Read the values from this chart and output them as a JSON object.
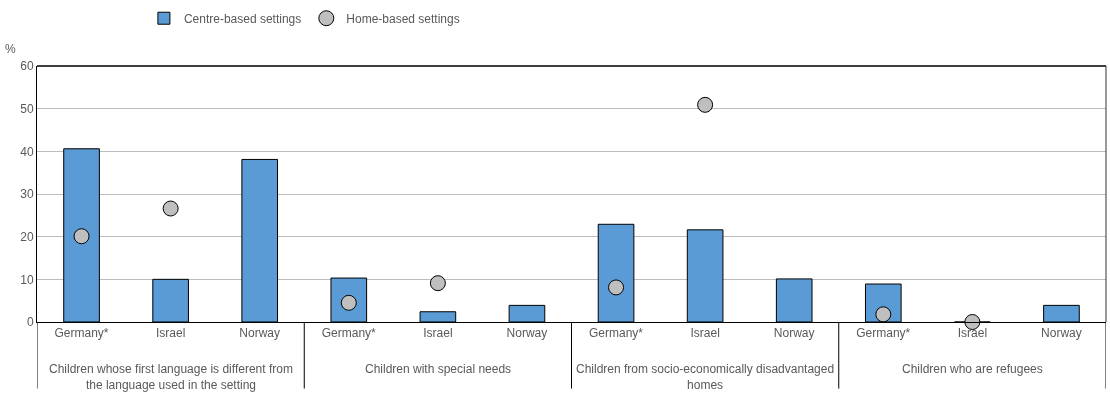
{
  "chart_data": {
    "type": "bar",
    "ylabel": "%",
    "categories": [
      "Germany*",
      "Israel",
      "Norway",
      "Germany*",
      "Israel",
      "Norway",
      "Germany*",
      "Israel",
      "Norway",
      "Germany*",
      "Israel",
      "Norway"
    ],
    "series": [
      {
        "name": "Centre-based settings",
        "color": "#5b9bd5",
        "values": [
          40.6,
          10,
          38.1,
          10.3,
          2.4,
          3.9,
          22.9,
          21.6,
          10.1,
          8.9,
          0,
          3.9
        ]
      },
      {
        "name": "Home-based settings",
        "type": "scatter",
        "marker": "circle",
        "color": "#bfbfbf",
        "values": [
          20.1,
          26.6,
          null,
          4.5,
          9.1,
          null,
          8.1,
          50.9,
          null,
          1.8,
          0,
          null
        ]
      }
    ],
    "annotations": [
      "Children whose first language is different from the language used in the setting",
      "Children with special needs",
      "Children from socio-economically disadvantaged homes",
      "Children who are refugees"
    ],
    "ylim": [
      0,
      60
    ],
    "yticks": [
      0,
      10,
      20,
      30,
      40,
      50,
      60
    ],
    "grid": "y",
    "legend": "top"
  }
}
